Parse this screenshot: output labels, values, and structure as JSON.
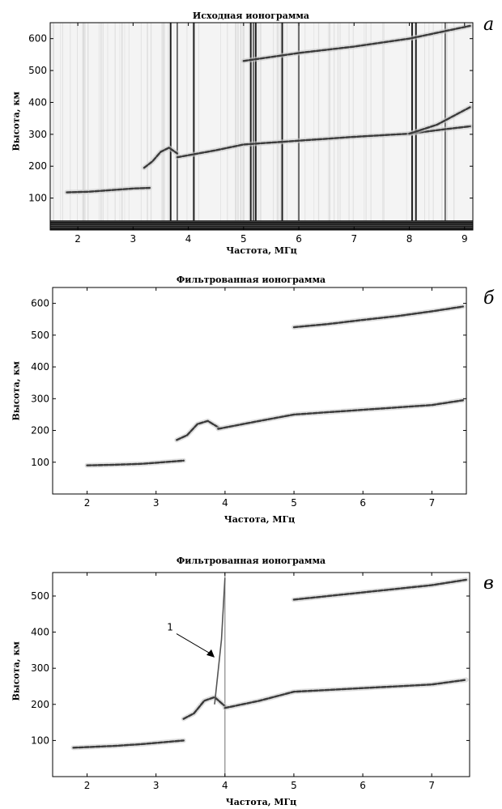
{
  "panels": [
    {
      "title": "Исходная ионограмма",
      "letter": "а",
      "xlabel": "Частота, МГц",
      "ylabel": "Высота, км",
      "xticks": [
        "2",
        "3",
        "4",
        "5",
        "6",
        "7",
        "8",
        "9"
      ],
      "yticks": [
        "100",
        "200",
        "300",
        "400",
        "500",
        "600"
      ]
    },
    {
      "title": "Фильтрованная ионограмма",
      "letter": "б",
      "xlabel": "Частота, МГц",
      "ylabel": "Высота, км",
      "xticks": [
        "2",
        "3",
        "4",
        "5",
        "6",
        "7"
      ],
      "yticks": [
        "100",
        "200",
        "300",
        "400",
        "500",
        "600"
      ]
    },
    {
      "title": "Фильтрованная ионограмма",
      "letter": "в",
      "xlabel": "Частота, МГц",
      "ylabel": "Высота, км",
      "xticks": [
        "2",
        "3",
        "4",
        "5",
        "6",
        "7"
      ],
      "yticks": [
        "100",
        "200",
        "300",
        "400",
        "500"
      ],
      "annotation": "1"
    }
  ],
  "chart_data": [
    {
      "type": "scatter",
      "title": "Исходная ионограмма",
      "xlabel": "Частота, МГц",
      "ylabel": "Высота, км",
      "xlim": [
        1.5,
        9.15
      ],
      "ylim": [
        0,
        650
      ],
      "traces": [
        {
          "x": [
            1.8,
            2.2,
            2.6,
            3.0,
            3.3
          ],
          "y": [
            118,
            120,
            125,
            130,
            132
          ]
        },
        {
          "x": [
            3.2,
            3.35,
            3.5,
            3.65,
            3.8
          ],
          "y": [
            195,
            215,
            245,
            258,
            240
          ]
        },
        {
          "x": [
            3.8,
            4.5,
            5.0,
            6.0,
            7.0,
            8.0,
            8.6,
            9.1
          ],
          "y": [
            228,
            250,
            268,
            280,
            292,
            302,
            315,
            325
          ]
        },
        {
          "x": [
            8.0,
            8.5,
            9.1
          ],
          "y": [
            302,
            330,
            385
          ]
        },
        {
          "x": [
            5.0,
            6.0,
            7.0,
            8.0,
            9.1
          ],
          "y": [
            530,
            555,
            575,
            600,
            640
          ]
        }
      ],
      "vertical_lines_x": [
        3.68,
        3.8,
        4.1,
        5.13,
        5.18,
        5.22,
        5.7,
        6.0,
        8.05,
        8.12,
        8.65
      ]
    },
    {
      "type": "scatter",
      "title": "Фильтрованная ионограмма",
      "xlabel": "Частота, МГц",
      "ylabel": "Высота, км",
      "xlim": [
        1.5,
        7.5
      ],
      "ylim": [
        0,
        650
      ],
      "traces": [
        {
          "x": [
            2.0,
            2.4,
            2.8,
            3.1,
            3.4
          ],
          "y": [
            90,
            92,
            95,
            100,
            105
          ]
        },
        {
          "x": [
            3.3,
            3.45,
            3.6,
            3.75,
            3.9
          ],
          "y": [
            170,
            185,
            220,
            230,
            210
          ]
        },
        {
          "x": [
            3.9,
            4.5,
            5.0,
            6.0,
            7.0,
            7.45
          ],
          "y": [
            205,
            230,
            250,
            265,
            280,
            295
          ]
        },
        {
          "x": [
            5.0,
            5.5,
            6.0,
            6.5,
            7.0,
            7.45
          ],
          "y": [
            525,
            535,
            548,
            560,
            575,
            590
          ]
        }
      ]
    },
    {
      "type": "scatter",
      "title": "Фильтрованная ионограмма",
      "xlabel": "Частота, МГц",
      "ylabel": "Высота, км",
      "xlim": [
        1.5,
        7.55
      ],
      "ylim": [
        0,
        565
      ],
      "traces": [
        {
          "x": [
            1.8,
            2.4,
            2.8,
            3.1,
            3.4
          ],
          "y": [
            80,
            85,
            90,
            95,
            100
          ]
        },
        {
          "x": [
            3.4,
            3.55,
            3.7,
            3.85,
            4.0
          ],
          "y": [
            160,
            175,
            210,
            220,
            195
          ]
        },
        {
          "x": [
            4.0,
            4.5,
            5.0,
            6.0,
            7.0,
            7.5
          ],
          "y": [
            190,
            210,
            235,
            245,
            255,
            268
          ]
        },
        {
          "x": [
            5.0,
            5.5,
            6.0,
            6.5,
            7.0,
            7.5
          ],
          "y": [
            490,
            500,
            510,
            520,
            530,
            545
          ]
        }
      ],
      "vertical_lines_x": [
        4.0
      ],
      "spike": {
        "x": [
          3.85,
          3.95,
          4.0
        ],
        "y": [
          200,
          380,
          550
        ]
      },
      "annotation": {
        "text": "1",
        "x": 3.65,
        "y": 365
      }
    }
  ]
}
